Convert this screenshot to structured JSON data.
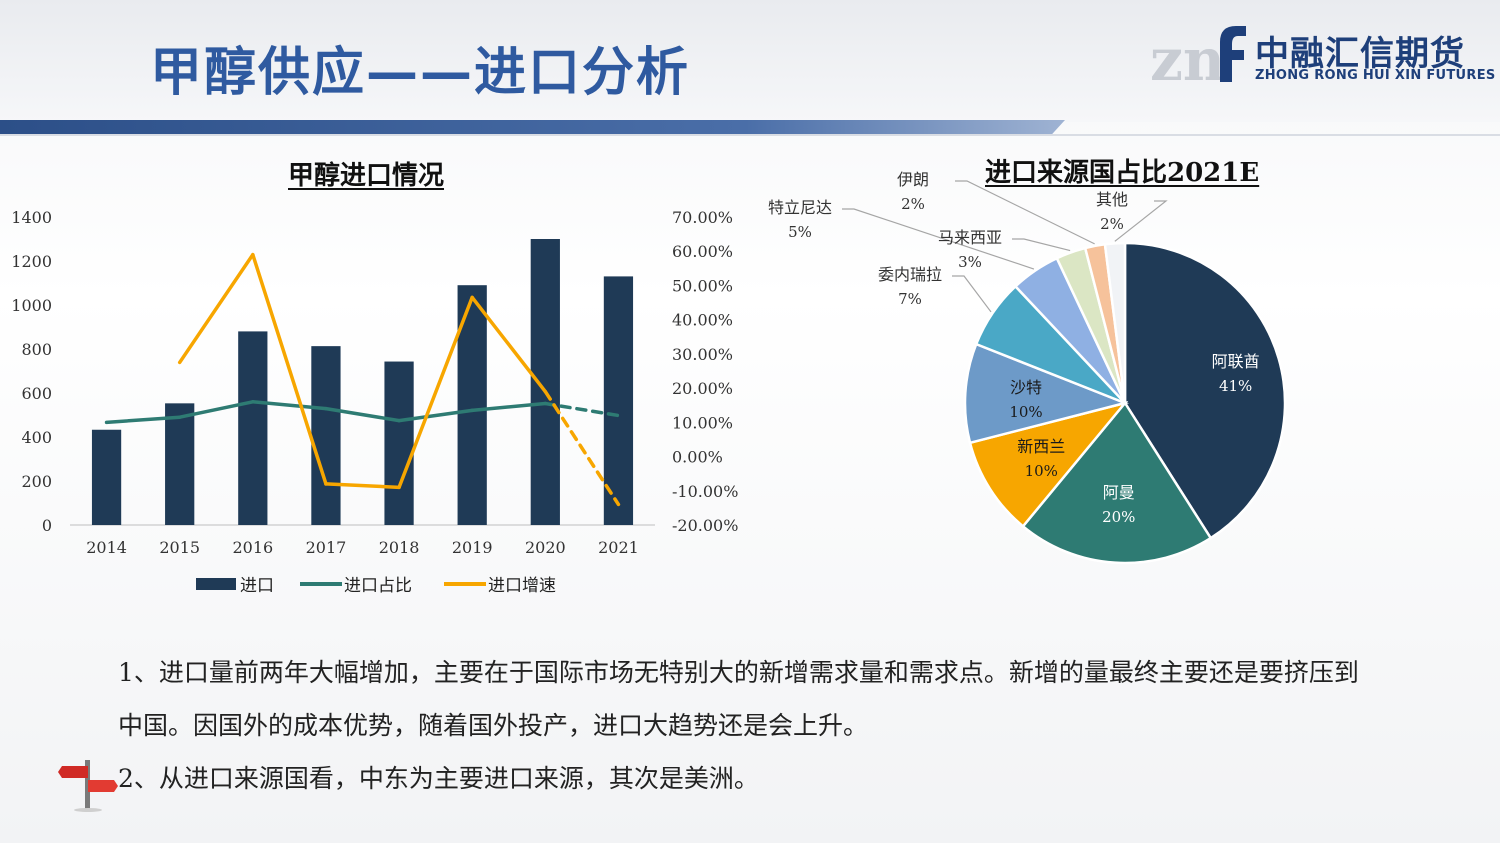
{
  "page": {
    "title": "甲醇供应——进口分析"
  },
  "logo": {
    "mark": "znf",
    "name_cn": "中融汇信期货",
    "name_en": "ZHONG RONG HUI XIN FUTURES"
  },
  "colors": {
    "title_blue": "#2f5aa0",
    "bar_navy": "#1f3a56",
    "share_teal": "#2e7b73",
    "growth_orange": "#f7a600"
  },
  "chart_data": [
    {
      "type": "bar",
      "title": "甲醇进口情况",
      "categories": [
        "2014",
        "2015",
        "2016",
        "2017",
        "2018",
        "2019",
        "2020",
        "2021"
      ],
      "ylim": [
        0,
        1400
      ],
      "y_ticks": [
        "1400",
        "1200",
        "1000",
        "800",
        "600",
        "400",
        "200",
        "0"
      ],
      "y2lim": [
        -0.2,
        0.7
      ],
      "y2_ticks": [
        "70.00%",
        "60.00%",
        "50.00%",
        "40.00%",
        "30.00%",
        "20.00%",
        "10.00%",
        "0.00%",
        "-10.00%",
        "-20.00%"
      ],
      "grid": false,
      "legend_position": "bottom",
      "series": [
        {
          "name": "进口",
          "type": "bar",
          "axis": "left",
          "color": "#1f3a56",
          "values": [
            433,
            553,
            880,
            813,
            743,
            1090,
            1300,
            1130
          ]
        },
        {
          "name": "进口占比",
          "type": "line",
          "axis": "right",
          "color": "#2e7b73",
          "values": [
            0.1,
            0.115,
            0.16,
            0.14,
            0.105,
            0.135,
            0.155,
            0.12
          ],
          "dashed_last_segment": true
        },
        {
          "name": "进口增速",
          "type": "line",
          "axis": "right",
          "color": "#f7a600",
          "values": [
            null,
            0.275,
            0.59,
            -0.08,
            -0.09,
            0.465,
            0.19,
            -0.14
          ],
          "dashed_last_segment": true
        }
      ]
    },
    {
      "type": "pie",
      "title": "进口来源国占比2021E",
      "slices": [
        {
          "name": "阿联酋",
          "value": 41,
          "label": "41%",
          "color": "#1f3a56"
        },
        {
          "name": "阿曼",
          "value": 20,
          "label": "20%",
          "color": "#2e7b73"
        },
        {
          "name": "新西兰",
          "value": 10,
          "label": "10%",
          "color": "#f7a600"
        },
        {
          "name": "沙特",
          "value": 10,
          "label": "10%",
          "color": "#6d9ac8"
        },
        {
          "name": "委内瑞拉",
          "value": 7,
          "label": "7%",
          "color": "#4aa8c6"
        },
        {
          "name": "特立尼达",
          "value": 5,
          "label": "5%",
          "color": "#8fb0e3"
        },
        {
          "name": "马来西亚",
          "value": 3,
          "label": "3%",
          "color": "#dbe6c4"
        },
        {
          "name": "伊朗",
          "value": 2,
          "label": "2%",
          "color": "#f6c29b"
        },
        {
          "name": "其他",
          "value": 2,
          "label": "2%",
          "color": "#f1f3f6"
        }
      ]
    }
  ],
  "text": {
    "line1": "1、进口量前两年大幅增加，主要在于国际市场无特别大的新增需求量和需求点。新增的量最终主要还是要挤压到中国。因国外的成本优势，随着国外投产，进口大趋势还是会上升。",
    "line2": "2、从进口来源国看，中东为主要进口来源，其次是美洲。"
  },
  "icons": {
    "sign": "signpost-icon"
  }
}
